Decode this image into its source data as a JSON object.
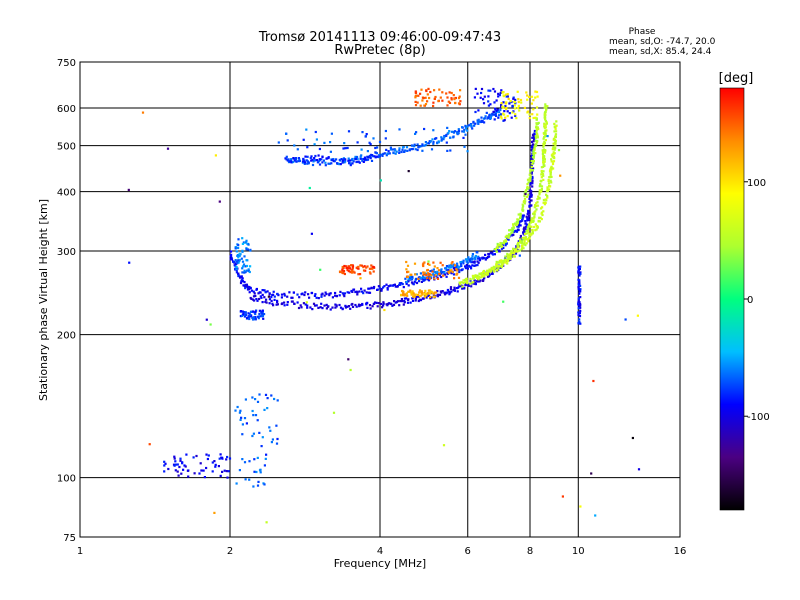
{
  "chart_data": {
    "type": "scatter",
    "title": "Tromsø 20141113 09:46:00-09:47:43",
    "subtitle": "RwPretec (8p)",
    "xlabel": "Frequency [MHz]",
    "ylabel": "Stationary phase Virtual Height [km]",
    "x_scale": "log",
    "y_scale": "log",
    "xlim": [
      1,
      16
    ],
    "ylim": [
      75,
      750
    ],
    "x_ticks": [
      1,
      2,
      4,
      6,
      8,
      10,
      16
    ],
    "y_ticks": [
      75,
      100,
      200,
      300,
      400,
      500,
      600,
      750
    ],
    "grid": true,
    "stats": {
      "heading": "Phase",
      "line1": "mean, sd,O: -74.7, 20.0",
      "line2": "mean, sd,X:  85.4, 24.4"
    },
    "colorbar": {
      "label": "[deg]",
      "range": [
        -180,
        180
      ],
      "ticks": [
        100,
        0,
        -100
      ],
      "colormap": "rainbow",
      "colors": [
        "#000000",
        "#4b0082",
        "#0000ff",
        "#00bfff",
        "#00ff7f",
        "#adff2f",
        "#ffff00",
        "#ff8c00",
        "#ff0000"
      ]
    },
    "traces": [
      {
        "kind": "curve",
        "phase": -100,
        "points": [
          [
            2.2,
            240
          ],
          [
            2.5,
            233
          ],
          [
            3,
            229
          ],
          [
            3.5,
            229
          ],
          [
            4,
            231
          ],
          [
            4.5,
            235
          ],
          [
            5,
            240
          ],
          [
            5.5,
            247
          ],
          [
            6,
            255
          ],
          [
            6.5,
            265
          ],
          [
            7,
            280
          ],
          [
            7.5,
            300
          ],
          [
            7.8,
            330
          ],
          [
            8,
            370
          ],
          [
            8.05,
            420
          ],
          [
            8.1,
            480
          ],
          [
            8.15,
            540
          ]
        ]
      },
      {
        "kind": "curve",
        "phase": -92,
        "points": [
          [
            2,
            295
          ],
          [
            2.1,
            262
          ],
          [
            2.2,
            248
          ],
          [
            2.5,
            242
          ],
          [
            3,
            242
          ],
          [
            3.5,
            245
          ],
          [
            4,
            250
          ],
          [
            4.5,
            256
          ],
          [
            5,
            263
          ],
          [
            5.5,
            270
          ],
          [
            6,
            278
          ],
          [
            6.5,
            290
          ],
          [
            7,
            305
          ],
          [
            7.5,
            330
          ],
          [
            7.8,
            360
          ]
        ]
      },
      {
        "kind": "curve",
        "phase": -65,
        "points": [
          [
            4.5,
            262
          ],
          [
            5,
            268
          ],
          [
            5.5,
            276
          ],
          [
            6,
            285
          ],
          [
            6.3,
            296
          ]
        ]
      },
      {
        "kind": "curve",
        "phase": 55,
        "points": [
          [
            5.8,
            255
          ],
          [
            6.3,
            265
          ],
          [
            6.8,
            278
          ],
          [
            7.3,
            295
          ],
          [
            7.8,
            320
          ],
          [
            8.1,
            350
          ],
          [
            8.4,
            400
          ],
          [
            8.5,
            450
          ],
          [
            8.55,
            500
          ],
          [
            8.6,
            560
          ],
          [
            8.62,
            610
          ]
        ]
      },
      {
        "kind": "curve",
        "phase": 60,
        "points": [
          [
            6.2,
            262
          ],
          [
            6.8,
            275
          ],
          [
            7.3,
            290
          ],
          [
            7.8,
            310
          ],
          [
            8.3,
            340
          ],
          [
            8.7,
            400
          ],
          [
            8.85,
            450
          ],
          [
            8.95,
            500
          ],
          [
            9,
            560
          ]
        ]
      },
      {
        "kind": "curve",
        "phase": 50,
        "points": [
          [
            6.8,
            300
          ],
          [
            7.2,
            320
          ],
          [
            7.6,
            350
          ],
          [
            7.9,
            400
          ],
          [
            8.1,
            460
          ],
          [
            8.25,
            520
          ],
          [
            8.3,
            580
          ]
        ]
      },
      {
        "kind": "curve",
        "phase": -68,
        "points": [
          [
            2.6,
            468
          ],
          [
            3,
            460
          ],
          [
            3.5,
            465
          ],
          [
            4,
            480
          ],
          [
            4.5,
            492
          ],
          [
            5,
            505
          ],
          [
            5.5,
            525
          ],
          [
            6,
            545
          ],
          [
            6.5,
            570
          ],
          [
            7,
            590
          ]
        ]
      },
      {
        "kind": "curve",
        "phase": -85,
        "points": [
          [
            2.6,
            465
          ],
          [
            3,
            470
          ],
          [
            3.5,
            460
          ],
          [
            4,
            475
          ]
        ]
      },
      {
        "kind": "cluster",
        "phase": -70,
        "x": [
          2.05,
          2.5
        ],
        "y": [
          95,
          150
        ]
      },
      {
        "kind": "cluster",
        "phase": -95,
        "x": [
          1.45,
          2.0
        ],
        "y": [
          100,
          112
        ]
      },
      {
        "kind": "cluster",
        "phase": -70,
        "x": [
          2.5,
          6.0
        ],
        "y": [
          485,
          545
        ]
      },
      {
        "kind": "cluster",
        "phase": -90,
        "x": [
          6.2,
          7.5
        ],
        "y": [
          560,
          660
        ]
      },
      {
        "kind": "cluster",
        "phase": 90,
        "x": [
          7.0,
          8.3
        ],
        "y": [
          570,
          650
        ]
      },
      {
        "kind": "cluster",
        "phase": 140,
        "x": [
          4.5,
          5.8
        ],
        "y": [
          262,
          285
        ]
      },
      {
        "kind": "cluster",
        "phase": 160,
        "x": [
          3.3,
          3.9
        ],
        "y": [
          268,
          280
        ]
      },
      {
        "kind": "cluster",
        "phase": 150,
        "x": [
          4.7,
          5.8
        ],
        "y": [
          605,
          660
        ]
      },
      {
        "kind": "cluster",
        "phase": 120,
        "x": [
          4.4,
          5.2
        ],
        "y": [
          240,
          248
        ]
      },
      {
        "kind": "cluster",
        "phase": -60,
        "x": [
          2.05,
          2.2
        ],
        "y": [
          270,
          320
        ]
      },
      {
        "kind": "cluster",
        "phase": -80,
        "x": [
          2.1,
          2.35
        ],
        "y": [
          215,
          225
        ]
      },
      {
        "kind": "cluster",
        "phase": -90,
        "x": [
          10.0,
          10.1
        ],
        "y": [
          210,
          280
        ]
      },
      {
        "kind": "cluster",
        "phase": 20,
        "x": [
          1.0,
          16.0
        ],
        "y": [
          80,
          700
        ]
      }
    ]
  }
}
